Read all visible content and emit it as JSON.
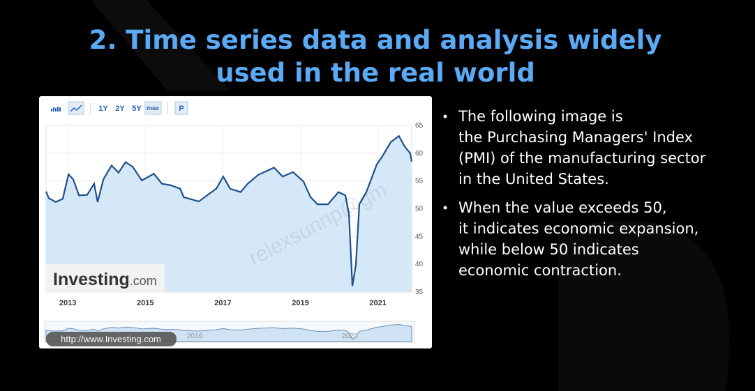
{
  "slide": {
    "title": [
      "2. Time series data and analysis widely",
      "used in the real world"
    ],
    "bullets": [
      [
        "The following image is",
        "the Purchasing Managers' Index",
        "(PMI) of the manufacturing sector",
        "in the United States."
      ],
      [
        "When the value exceeds 50,",
        "it indicates economic expansion,",
        "while below 50 indicates",
        "economic contraction."
      ]
    ],
    "toolbar": [
      "1Y",
      "2Y",
      "5Y",
      "max",
      "P"
    ],
    "logo": [
      "Investing",
      ".com"
    ],
    "url": "http://www.Investing.com",
    "navigator_labels": [
      "2016",
      "2020"
    ],
    "watermark": "relexsunnp@gm"
  },
  "chart_data": {
    "type": "line",
    "x": [
      2012.44,
      2012.51,
      2012.69,
      2012.87,
      2013.02,
      2013.14,
      2013.29,
      2013.5,
      2013.68,
      2013.77,
      2013.92,
      2014.13,
      2014.31,
      2014.49,
      2014.67,
      2014.91,
      2015.22,
      2015.43,
      2015.67,
      2015.9,
      2015.99,
      2016.38,
      2016.65,
      2016.83,
      2017.01,
      2017.19,
      2017.46,
      2017.64,
      2017.91,
      2018.32,
      2018.54,
      2018.81,
      2019.08,
      2019.26,
      2019.44,
      2019.71,
      2019.98,
      2020.16,
      2020.25,
      2020.34,
      2020.43,
      2020.52,
      2020.7,
      2020.97,
      2021.11,
      2021.33,
      2021.54,
      2021.69,
      2021.83,
      2021.87
    ],
    "series": [
      {
        "name": "PMI",
        "color": "#1d4f8c",
        "values": [
          53.1,
          51.9,
          51.2,
          51.8,
          56.2,
          55.3,
          52.4,
          52.5,
          54.5,
          51.2,
          55.3,
          57.8,
          56.5,
          58.4,
          57.6,
          55.1,
          56.3,
          54.5,
          54.2,
          53.6,
          52.1,
          51.3,
          52.7,
          53.6,
          55.8,
          53.6,
          53.0,
          54.5,
          56.1,
          57.4,
          55.8,
          56.6,
          54.9,
          52.1,
          50.8,
          50.8,
          53.0,
          52.4,
          49.2,
          36.1,
          39.9,
          50.8,
          53.0,
          58.0,
          59.4,
          62.0,
          63.1,
          61.2,
          60.0,
          58.5
        ]
      }
    ],
    "xlim": [
      2012.44,
      2021.87
    ],
    "xticks": [
      2013,
      2015,
      2017,
      2019,
      2021
    ],
    "ylim": [
      35,
      65
    ],
    "yticks": [
      35,
      40,
      45,
      50,
      55,
      60,
      65
    ],
    "grid": true
  }
}
